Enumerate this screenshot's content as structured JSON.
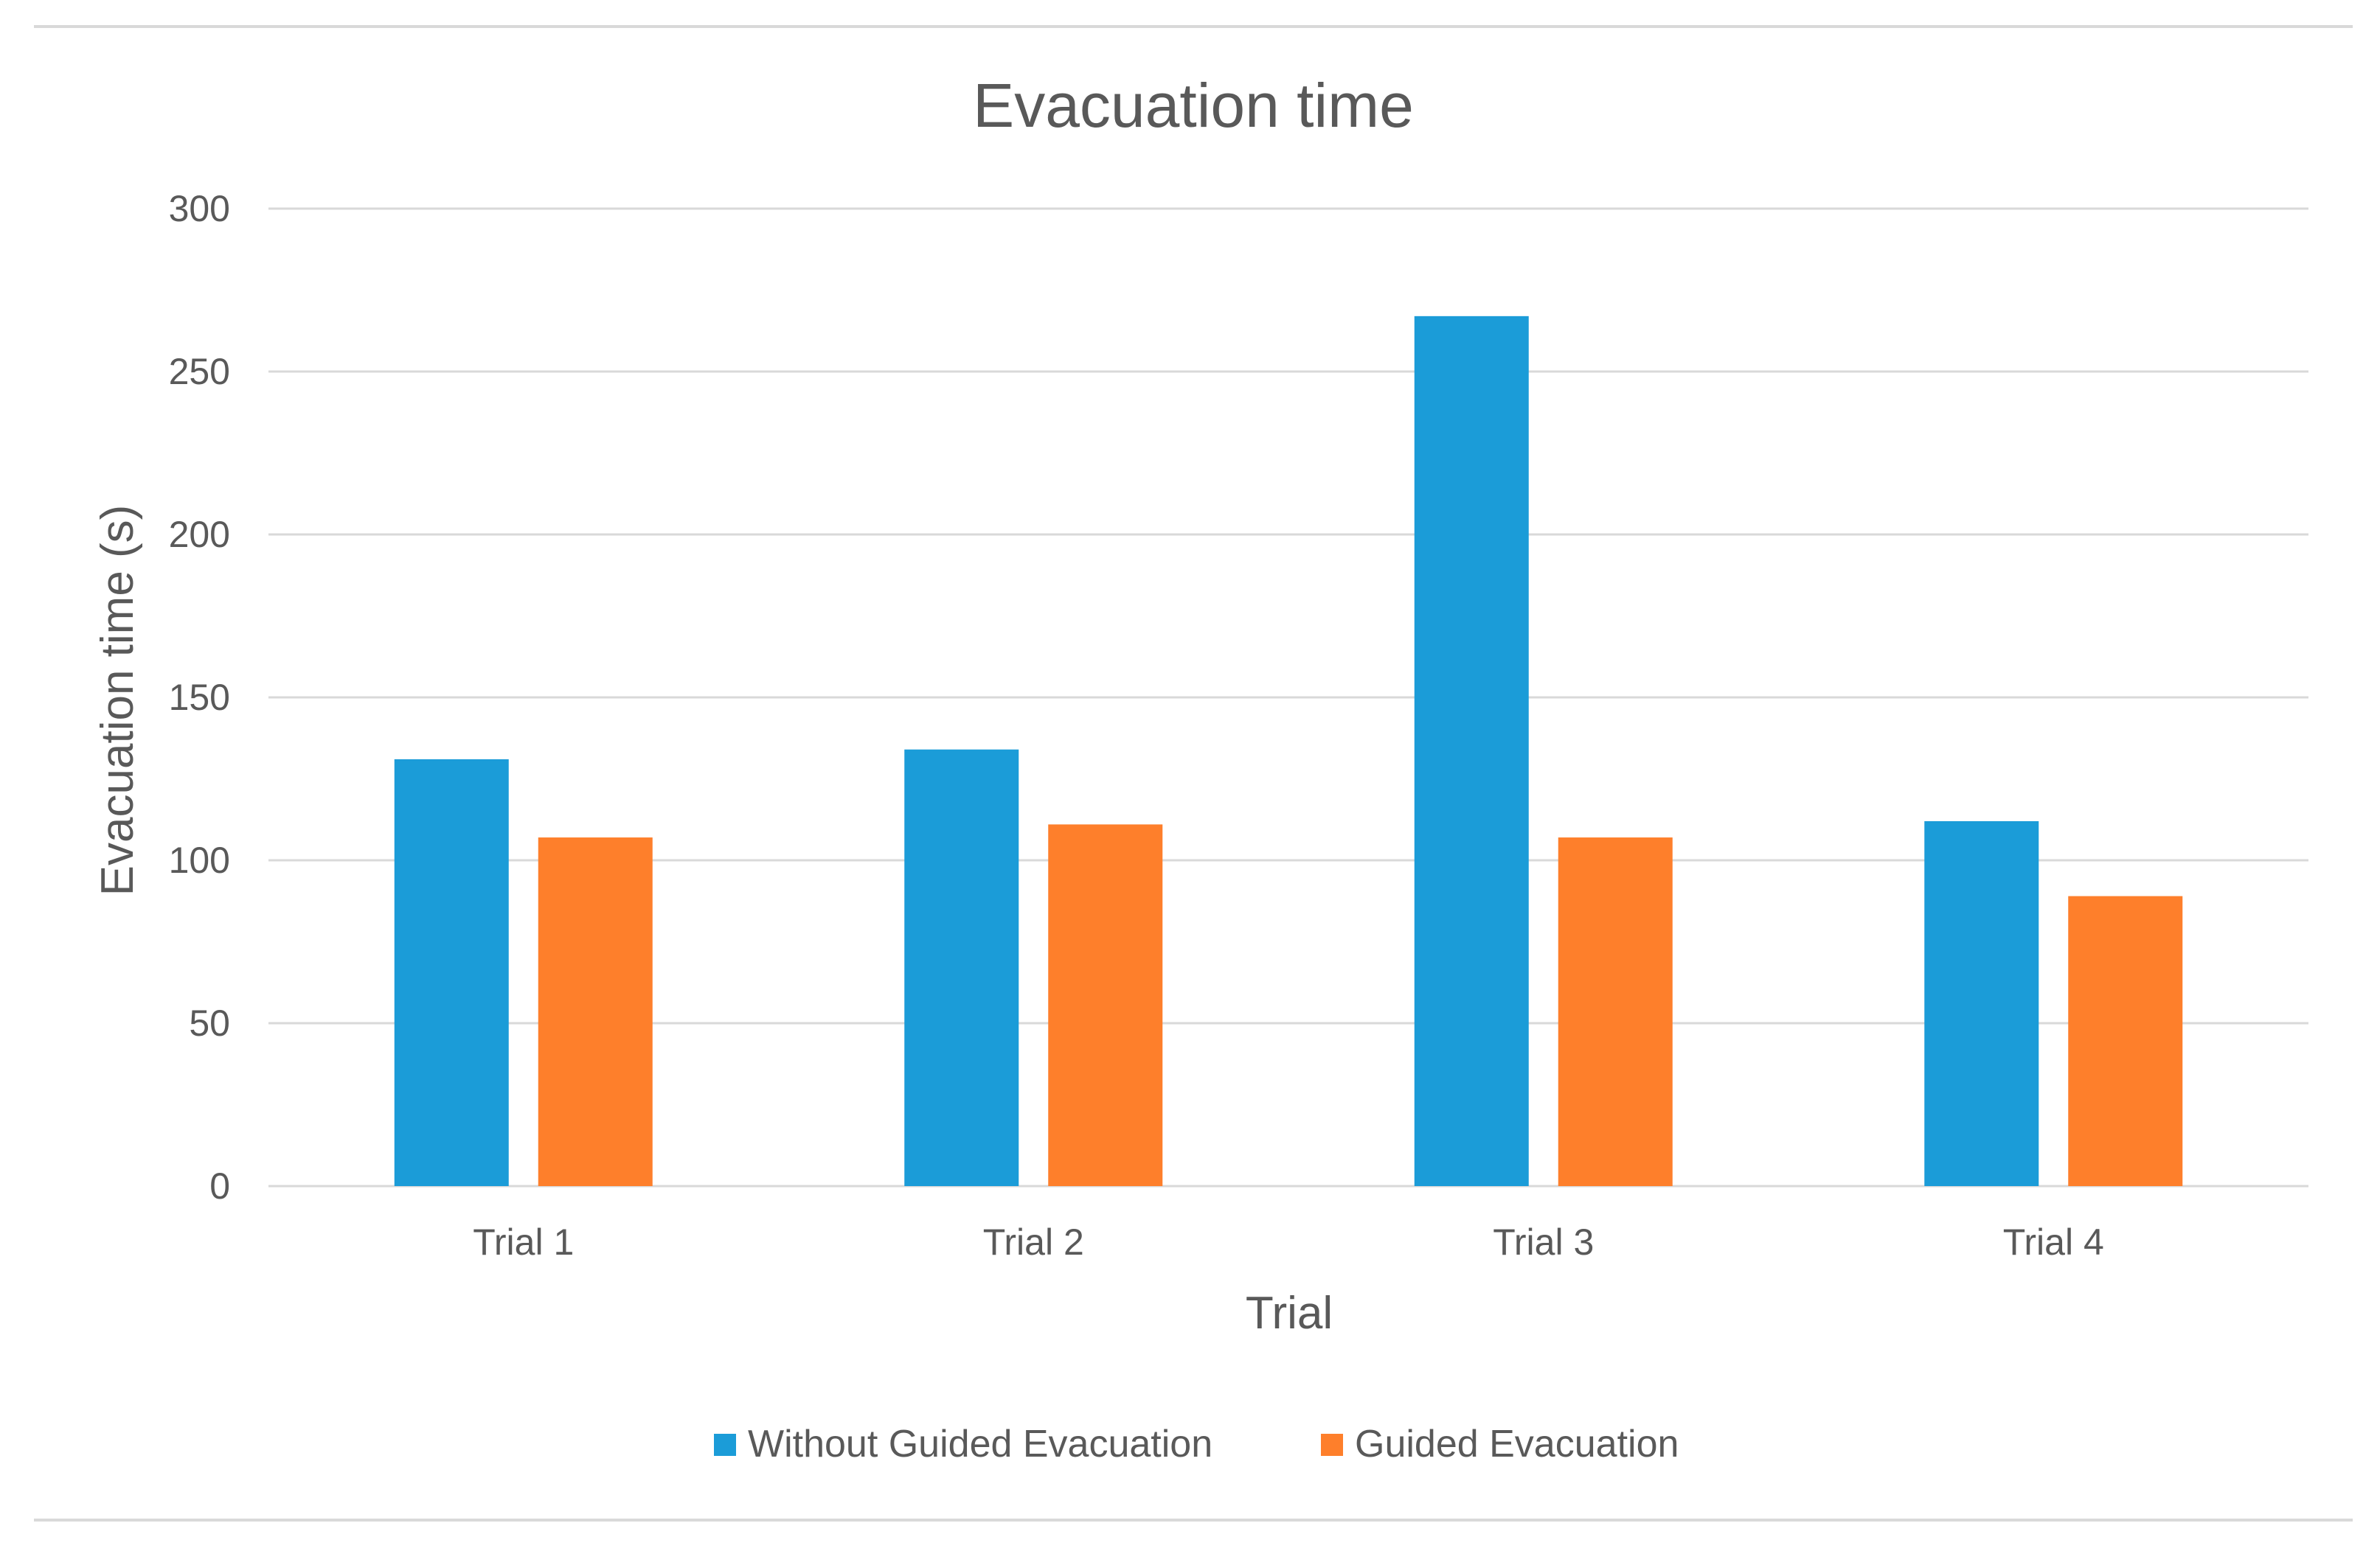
{
  "chart_data": {
    "type": "bar",
    "title": "Evacuation time",
    "xlabel": "Trial",
    "ylabel": "Evacuation time (s)",
    "categories": [
      "Trial 1",
      "Trial 2",
      "Trial 3",
      "Trial 4"
    ],
    "ylim": [
      0,
      300
    ],
    "yticks": [
      0,
      50,
      100,
      150,
      200,
      250,
      300
    ],
    "grid": true,
    "legend_position": "bottom",
    "series": [
      {
        "name": "Without Guided Evacuation",
        "color": "#1B9CD8",
        "values": [
          131,
          134,
          267,
          112
        ]
      },
      {
        "name": "Guided Evacuation",
        "color": "#FE7F2B",
        "values": [
          107,
          111,
          107,
          89
        ]
      }
    ]
  }
}
